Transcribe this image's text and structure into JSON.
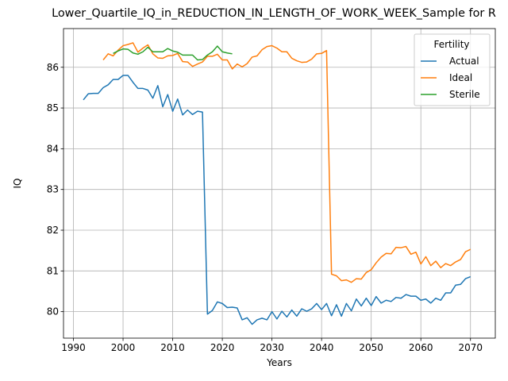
{
  "chart_data": {
    "type": "line",
    "title": "Lower_Quartile_IQ_in_REDUCTION_IN_LENGTH_OF_WORK_WEEK_Sample for R",
    "xlabel": "Years",
    "ylabel": "IQ",
    "xlim": [
      1988,
      2075
    ],
    "ylim": [
      79.35,
      86.95
    ],
    "xticks": [
      1990,
      2000,
      2010,
      2020,
      2030,
      2040,
      2050,
      2060,
      2070
    ],
    "yticks": [
      80,
      81,
      82,
      83,
      84,
      85,
      86
    ],
    "grid": true,
    "legend": {
      "title": "Fertility",
      "placement": "top-right"
    },
    "series": [
      {
        "name": "Actual",
        "color": "#1f77b4",
        "x": [
          1992,
          1993,
          1994,
          1995,
          1996,
          1997,
          1998,
          1999,
          2000,
          2001,
          2002,
          2003,
          2004,
          2005,
          2006,
          2007,
          2008,
          2009,
          2010,
          2011,
          2012,
          2013,
          2014,
          2015,
          2016,
          2017,
          2018,
          2019,
          2020,
          2021,
          2022,
          2023,
          2024,
          2025,
          2026,
          2027,
          2028,
          2029,
          2030,
          2031,
          2032,
          2033,
          2034,
          2035,
          2036,
          2037,
          2038,
          2039,
          2040,
          2041,
          2042,
          2043,
          2044,
          2045,
          2046,
          2047,
          2048,
          2049,
          2050,
          2051,
          2052,
          2053,
          2054,
          2055,
          2056,
          2057,
          2058,
          2059,
          2060,
          2061,
          2062,
          2063,
          2064,
          2065,
          2066,
          2067,
          2068,
          2069,
          2070
        ],
        "values": [
          85.2,
          85.35,
          85.36,
          85.36,
          85.5,
          85.57,
          85.7,
          85.7,
          85.8,
          85.8,
          85.63,
          85.48,
          85.48,
          85.44,
          85.24,
          85.55,
          85.03,
          85.33,
          84.92,
          85.22,
          84.83,
          84.95,
          84.84,
          84.92,
          84.9,
          79.94,
          80.03,
          80.24,
          80.2,
          80.1,
          80.11,
          80.09,
          79.8,
          79.85,
          79.69,
          79.8,
          79.84,
          79.8,
          80.0,
          79.82,
          80.01,
          79.87,
          80.04,
          79.89,
          80.07,
          80.01,
          80.07,
          80.2,
          80.05,
          80.2,
          79.9,
          80.17,
          79.89,
          80.2,
          80.02,
          80.31,
          80.14,
          80.33,
          80.15,
          80.37,
          80.21,
          80.28,
          80.25,
          80.35,
          80.33,
          80.42,
          80.38,
          80.38,
          80.28,
          80.31,
          80.21,
          80.33,
          80.28,
          80.46,
          80.46,
          80.65,
          80.67,
          80.81,
          80.86
        ]
      },
      {
        "name": "Ideal",
        "color": "#ff7f0e",
        "x": [
          1996,
          1997,
          1998,
          1999,
          2000,
          2001,
          2002,
          2003,
          2004,
          2005,
          2006,
          2007,
          2008,
          2009,
          2010,
          2011,
          2012,
          2013,
          2014,
          2015,
          2016,
          2017,
          2018,
          2019,
          2020,
          2021,
          2022,
          2023,
          2024,
          2025,
          2026,
          2027,
          2028,
          2029,
          2030,
          2031,
          2032,
          2033,
          2034,
          2035,
          2036,
          2037,
          2038,
          2039,
          2040,
          2041,
          2042,
          2043,
          2044,
          2045,
          2046,
          2047,
          2048,
          2049,
          2050,
          2051,
          2052,
          2053,
          2054,
          2055,
          2056,
          2057,
          2058,
          2059,
          2060,
          2061,
          2062,
          2063,
          2064,
          2065,
          2066,
          2067,
          2068,
          2069,
          2070
        ],
        "values": [
          86.18,
          86.33,
          86.28,
          86.42,
          86.53,
          86.56,
          86.6,
          86.37,
          86.47,
          86.55,
          86.33,
          86.23,
          86.22,
          86.28,
          86.29,
          86.34,
          86.14,
          86.13,
          86.02,
          86.08,
          86.13,
          86.27,
          86.27,
          86.32,
          86.18,
          86.18,
          85.96,
          86.08,
          86.01,
          86.09,
          86.25,
          86.28,
          86.43,
          86.51,
          86.53,
          86.47,
          86.38,
          86.38,
          86.22,
          86.16,
          86.12,
          86.13,
          86.2,
          86.33,
          86.34,
          86.41,
          80.92,
          80.88,
          80.76,
          80.78,
          80.72,
          80.81,
          80.8,
          80.96,
          81.03,
          81.2,
          81.34,
          81.43,
          81.42,
          81.58,
          81.57,
          81.6,
          81.41,
          81.46,
          81.17,
          81.35,
          81.13,
          81.24,
          81.08,
          81.18,
          81.13,
          81.22,
          81.28,
          81.47,
          81.53
        ]
      },
      {
        "name": "Sterile",
        "color": "#2ca02c",
        "x": [
          1998,
          1999,
          2000,
          2001,
          2002,
          2003,
          2004,
          2005,
          2006,
          2007,
          2008,
          2009,
          2010,
          2011,
          2012,
          2013,
          2014,
          2015,
          2016,
          2017,
          2018,
          2019,
          2020,
          2021,
          2022
        ],
        "values": [
          86.34,
          86.4,
          86.45,
          86.44,
          86.35,
          86.32,
          86.38,
          86.49,
          86.38,
          86.38,
          86.38,
          86.46,
          86.4,
          86.37,
          86.3,
          86.3,
          86.3,
          86.18,
          86.19,
          86.3,
          86.38,
          86.52,
          86.38,
          86.35,
          86.33
        ]
      }
    ]
  }
}
